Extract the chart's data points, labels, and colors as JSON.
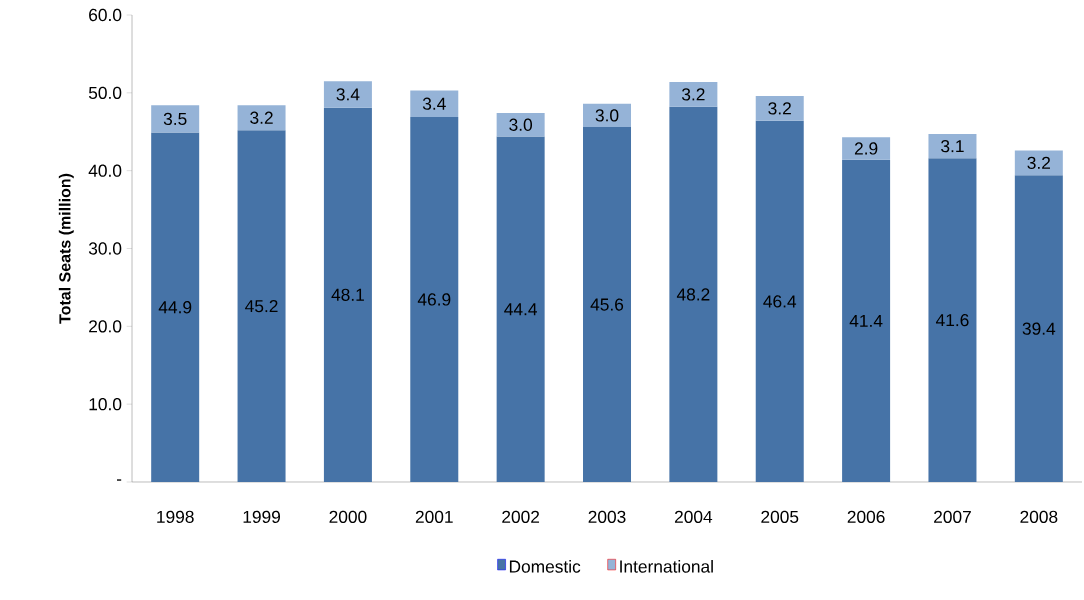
{
  "chart_data": {
    "type": "bar",
    "stacked": true,
    "ylabel": "Total Seats (million)",
    "categories": [
      "1998",
      "1999",
      "2000",
      "2001",
      "2002",
      "2003",
      "2004",
      "2005",
      "2006",
      "2007",
      "2008"
    ],
    "series": [
      {
        "name": "Domestic",
        "color": "#4673a7",
        "values": [
          44.9,
          45.2,
          48.1,
          46.9,
          44.4,
          45.6,
          48.2,
          46.4,
          41.4,
          41.6,
          39.4
        ],
        "value_labels": [
          "44.9",
          "45.2",
          "48.1",
          "46.9",
          "44.4",
          "45.6",
          "48.2",
          "46.4",
          "41.4",
          "41.6",
          "39.4"
        ]
      },
      {
        "name": "International",
        "color": "#95b3d7",
        "values": [
          3.5,
          3.2,
          3.4,
          3.4,
          3.0,
          3.0,
          3.2,
          3.2,
          2.9,
          3.1,
          3.2
        ],
        "value_labels": [
          "3.5",
          "3.2",
          "3.4",
          "3.4",
          "3.0",
          "3.0",
          "3.2",
          "3.2",
          "2.9",
          "3.1",
          "3.2"
        ]
      }
    ],
    "ylim": [
      0,
      60
    ],
    "yticks": [
      {
        "value": 0,
        "label": "-"
      },
      {
        "value": 10,
        "label": "10.0"
      },
      {
        "value": 20,
        "label": "20.0"
      },
      {
        "value": 30,
        "label": "30.0"
      },
      {
        "value": 40,
        "label": "40.0"
      },
      {
        "value": 50,
        "label": "50.0"
      },
      {
        "value": 60,
        "label": "60.0"
      }
    ],
    "legend": "bottom",
    "grid": false
  }
}
